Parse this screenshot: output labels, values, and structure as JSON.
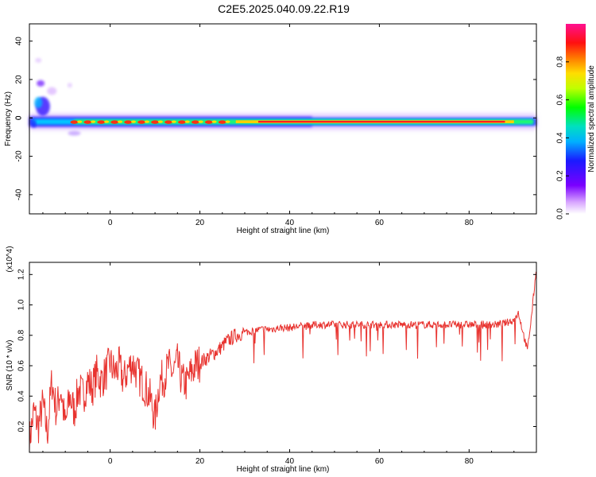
{
  "title": "C2E5.2025.040.09.22.R19",
  "colors": {
    "snr_line": "#e8332f",
    "axis": "#000000"
  },
  "chart_data": [
    {
      "type": "heatmap",
      "xlabel": "Height of straight line (km)",
      "ylabel": "Frequency (Hz)",
      "xlim": [
        -18,
        95
      ],
      "ylim": [
        -50,
        49
      ],
      "x_ticks": [
        "0",
        "20",
        "40",
        "60",
        "80"
      ],
      "x_tick_values": [
        0,
        20,
        40,
        60,
        80
      ],
      "y_ticks": [
        "40",
        "20",
        "0",
        "-20",
        "-40"
      ],
      "y_tick_values": [
        40,
        20,
        0,
        -20,
        -40
      ],
      "colorbar": {
        "label": "Normalized spectral amplitude",
        "range": [
          0,
          1
        ],
        "ticks": [
          "0.0",
          "0.2",
          "0.4",
          "0.6",
          "0.8"
        ],
        "tick_values": [
          0.0,
          0.2,
          0.4,
          0.6,
          0.8
        ],
        "colormap": "rainbow (white-violet-blue-cyan-green-yellow-orange-red-magenta)"
      },
      "features": {
        "main_band_center_hz": -2,
        "main_band_start_km": -18,
        "main_band_end_km": 95,
        "low_altitude_spread_hz": [
          -8,
          30
        ]
      }
    },
    {
      "type": "line",
      "xlabel": "Height of straight line (km)",
      "ylabel": "SNR (10 * v/v)",
      "y_multiplier": "(x10^4)",
      "xlim": [
        -18,
        95
      ],
      "ylim": [
        0.03,
        1.28
      ],
      "x_ticks": [
        "0",
        "20",
        "40",
        "60",
        "80"
      ],
      "x_tick_values": [
        0,
        20,
        40,
        60,
        80
      ],
      "y_ticks": [
        "1.2",
        "1.0",
        "0.8",
        "0.6",
        "0.4",
        "0.2"
      ],
      "y_tick_values": [
        1.2,
        1.0,
        0.8,
        0.6,
        0.4,
        0.2
      ],
      "series": [
        {
          "x": [
            -18,
            -17,
            -16,
            -15,
            -14,
            -13,
            -12,
            -11,
            -10,
            -9,
            -8,
            -7,
            -6,
            -5,
            -4,
            -3,
            -2,
            -1,
            0,
            1,
            2,
            3,
            4,
            5,
            6,
            7,
            8,
            9,
            10,
            11,
            12,
            13,
            14,
            15,
            16,
            17,
            18,
            19,
            20,
            22,
            24,
            26,
            28,
            30,
            32,
            34,
            36,
            38,
            40,
            42,
            44,
            46,
            48,
            50,
            52,
            54,
            56,
            58,
            60,
            62,
            64,
            66,
            68,
            70,
            72,
            74,
            76,
            78,
            80,
            82,
            84,
            86,
            88,
            90,
            91,
            92,
            93,
            94,
            95
          ],
          "y": [
            0.1,
            0.3,
            0.2,
            0.35,
            0.15,
            0.5,
            0.3,
            0.45,
            0.2,
            0.4,
            0.3,
            0.45,
            0.4,
            0.5,
            0.45,
            0.55,
            0.5,
            0.55,
            0.62,
            0.55,
            0.6,
            0.5,
            0.58,
            0.62,
            0.55,
            0.5,
            0.45,
            0.38,
            0.25,
            0.5,
            0.52,
            0.6,
            0.55,
            0.62,
            0.5,
            0.48,
            0.55,
            0.6,
            0.62,
            0.66,
            0.7,
            0.76,
            0.8,
            0.82,
            0.83,
            0.84,
            0.84,
            0.85,
            0.85,
            0.86,
            0.86,
            0.87,
            0.87,
            0.87,
            0.87,
            0.87,
            0.87,
            0.87,
            0.87,
            0.87,
            0.87,
            0.87,
            0.87,
            0.87,
            0.87,
            0.87,
            0.87,
            0.87,
            0.87,
            0.87,
            0.87,
            0.87,
            0.88,
            0.9,
            0.95,
            0.82,
            0.7,
            0.95,
            1.25
          ]
        }
      ]
    }
  ]
}
